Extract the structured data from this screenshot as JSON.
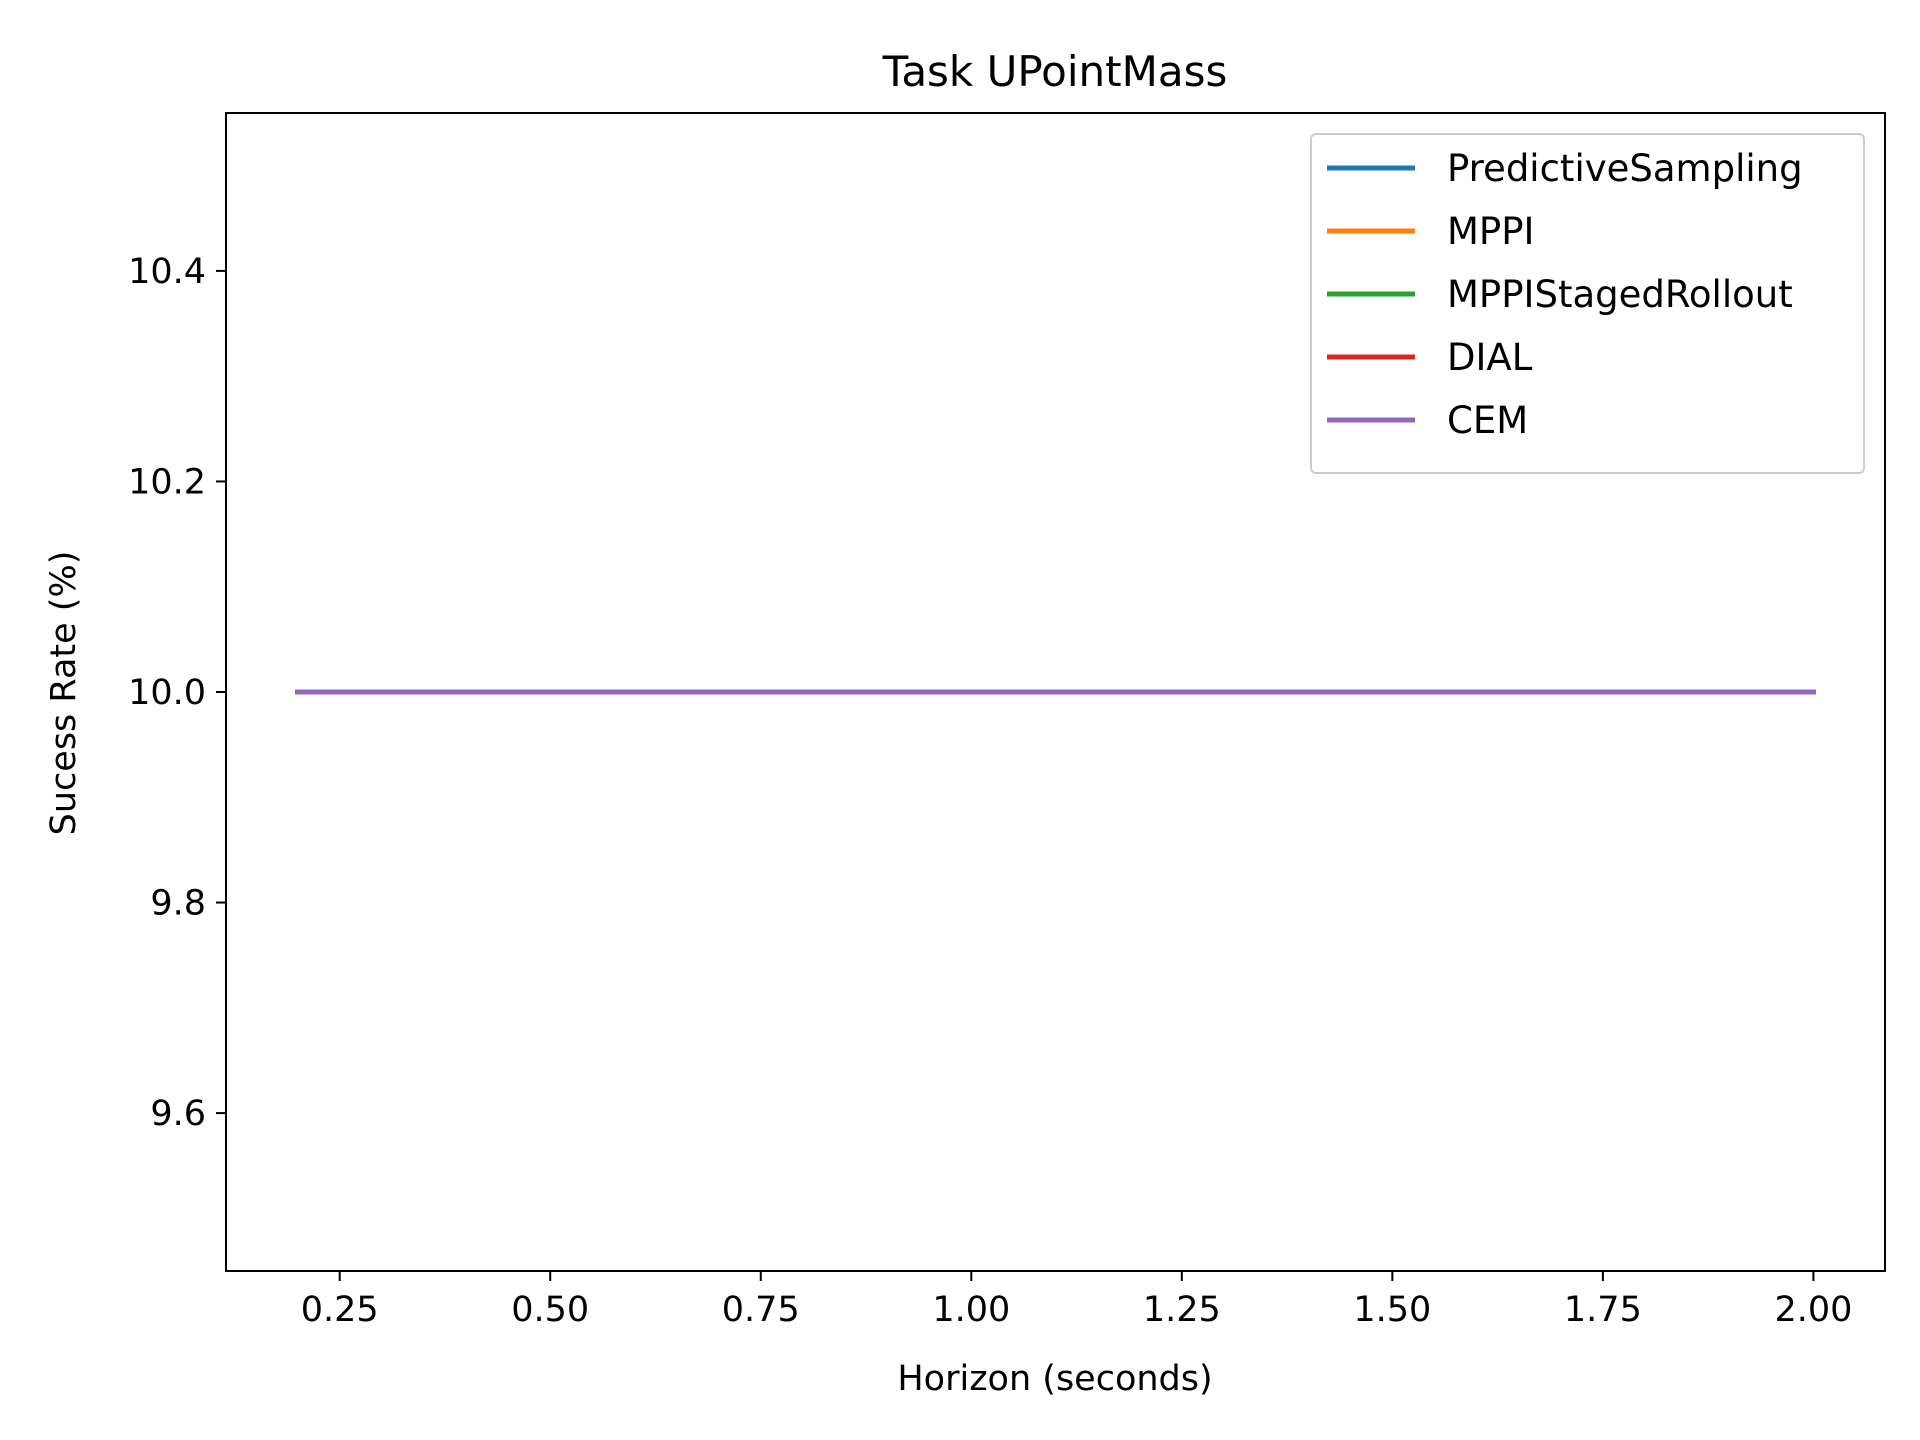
{
  "chart_data": {
    "type": "line",
    "title": "Task UPointMass",
    "xlabel": "Horizon (seconds)",
    "ylabel": "Sucess Rate (%)",
    "xlim": [
      0.115,
      2.085
    ],
    "ylim": [
      9.45,
      10.55
    ],
    "xticks": [
      0.25,
      0.5,
      0.75,
      1.0,
      1.25,
      1.5,
      1.75,
      2.0
    ],
    "xtick_labels": [
      "0.25",
      "0.50",
      "0.75",
      "1.00",
      "1.25",
      "1.50",
      "1.75",
      "2.00"
    ],
    "yticks": [
      9.6,
      9.8,
      10.0,
      10.2,
      10.4
    ],
    "ytick_labels": [
      "9.6",
      "9.8",
      "10.0",
      "10.2",
      "10.4"
    ],
    "grid": false,
    "legend_position": "top-right",
    "x": [
      0.2,
      0.4,
      0.6,
      0.8,
      1.0,
      1.2,
      1.4,
      1.6,
      1.8,
      2.0
    ],
    "series": [
      {
        "name": "PredictiveSampling",
        "color": "#1f77b4",
        "values": [
          10,
          10,
          10,
          10,
          10,
          10,
          10,
          10,
          10,
          10
        ]
      },
      {
        "name": "MPPI",
        "color": "#ff7f0e",
        "values": [
          10,
          10,
          10,
          10,
          10,
          10,
          10,
          10,
          10,
          10
        ]
      },
      {
        "name": "MPPIStagedRollout",
        "color": "#2ca02c",
        "values": [
          10,
          10,
          10,
          10,
          10,
          10,
          10,
          10,
          10,
          10
        ]
      },
      {
        "name": "DIAL",
        "color": "#d62728",
        "values": [
          10,
          10,
          10,
          10,
          10,
          10,
          10,
          10,
          10,
          10
        ]
      },
      {
        "name": "CEM",
        "color": "#9467bd",
        "values": [
          10,
          10,
          10,
          10,
          10,
          10,
          10,
          10,
          10,
          10
        ]
      }
    ]
  }
}
